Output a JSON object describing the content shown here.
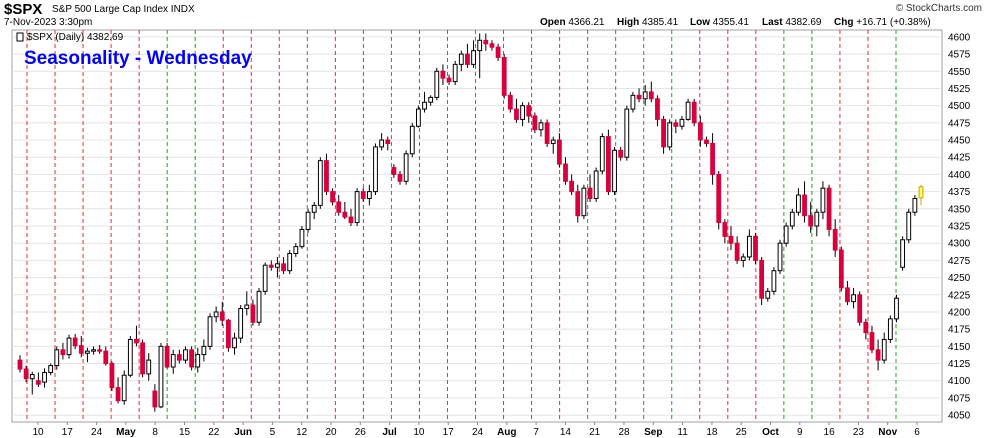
{
  "header": {
    "symbol": "$SPX",
    "description": "S&P 500 Large Cap Index  INDX",
    "date": "7-Nov-2023 3:30pm",
    "brand": "© StockCharts.com",
    "open_label": "Open",
    "open_value": "4366.21",
    "high_label": "High",
    "high_value": "4385.41",
    "low_label": "Low",
    "low_value": "4355.41",
    "last_label": "Last",
    "last_value": "4382.69",
    "chg_label": "Chg",
    "chg_value": "+16.71 (+0.38%)"
  },
  "chart_data": {
    "type": "candlestick",
    "title": "Seasonality - Wednesday",
    "legend_entry": "$SPX (Daily) 4382.69",
    "ylim": [
      4040,
      4610
    ],
    "yticks": [
      4050,
      4075,
      4100,
      4125,
      4150,
      4175,
      4200,
      4225,
      4250,
      4275,
      4300,
      4325,
      4350,
      4375,
      4400,
      4425,
      4450,
      4475,
      4500,
      4525,
      4550,
      4575,
      4600
    ],
    "x_tick_labels": [
      "10",
      "17",
      "24",
      "May",
      "8",
      "15",
      "22",
      "Jun",
      "5",
      "12",
      "20",
      "26",
      "Jul",
      "10",
      "17",
      "24",
      "Aug",
      "7",
      "14",
      "21",
      "28",
      "Sep",
      "11",
      "18",
      "25",
      "Oct",
      "9",
      "16",
      "23",
      "Nov",
      "6"
    ],
    "bold_x_labels": [
      "May",
      "Jun",
      "Jul",
      "Aug",
      "Sep",
      "Oct",
      "Nov"
    ],
    "vertical_lines": "red dashed = Wednesday (down), green dashed = Wednesday (up)",
    "wednesday_colors": [
      "red",
      "red",
      "red",
      "red",
      "red",
      "green",
      "green",
      "red",
      "red",
      "red",
      "green",
      "red",
      "red",
      "green",
      "red",
      "green",
      "green",
      "red",
      "red",
      "red",
      "green",
      "green",
      "green",
      "green",
      "red",
      "red",
      "red",
      "green",
      "green",
      "red",
      "red",
      "green"
    ],
    "candles": [
      [
        4130,
        4137,
        4112,
        4117
      ],
      [
        4117,
        4122,
        4098,
        4103
      ],
      [
        4103,
        4113,
        4080,
        4109
      ],
      [
        4100,
        4112,
        4091,
        4095
      ],
      [
        4098,
        4118,
        4090,
        4112
      ],
      [
        4112,
        4125,
        4108,
        4122
      ],
      [
        4122,
        4150,
        4116,
        4145
      ],
      [
        4145,
        4155,
        4131,
        4138
      ],
      [
        4138,
        4167,
        4132,
        4162
      ],
      [
        4162,
        4168,
        4146,
        4151
      ],
      [
        4151,
        4165,
        4134,
        4140
      ],
      [
        4140,
        4148,
        4127,
        4143
      ],
      [
        4143,
        4150,
        4138,
        4145
      ],
      [
        4145,
        4152,
        4139,
        4143
      ],
      [
        4143,
        4150,
        4122,
        4125
      ],
      [
        4125,
        4128,
        4085,
        4090
      ],
      [
        4090,
        4105,
        4067,
        4071
      ],
      [
        4071,
        4115,
        4065,
        4108
      ],
      [
        4108,
        4165,
        4105,
        4160
      ],
      [
        4160,
        4180,
        4150,
        4155
      ],
      [
        4155,
        4160,
        4105,
        4110
      ],
      [
        4110,
        4140,
        4100,
        4130
      ],
      [
        4085,
        4095,
        4055,
        4062
      ],
      [
        4062,
        4155,
        4060,
        4150
      ],
      [
        4150,
        4155,
        4118,
        4120
      ],
      [
        4120,
        4145,
        4110,
        4138
      ],
      [
        4138,
        4145,
        4125,
        4130
      ],
      [
        4130,
        4150,
        4125,
        4145
      ],
      [
        4145,
        4150,
        4115,
        4120
      ],
      [
        4120,
        4148,
        4112,
        4138
      ],
      [
        4138,
        4160,
        4128,
        4150
      ],
      [
        4150,
        4198,
        4145,
        4193
      ],
      [
        4193,
        4208,
        4185,
        4200
      ],
      [
        4200,
        4215,
        4180,
        4188
      ],
      [
        4188,
        4190,
        4142,
        4148
      ],
      [
        4148,
        4170,
        4138,
        4162
      ],
      [
        4162,
        4210,
        4155,
        4205
      ],
      [
        4205,
        4230,
        4195,
        4210
      ],
      [
        4210,
        4218,
        4180,
        4185
      ],
      [
        4185,
        4235,
        4180,
        4230
      ],
      [
        4230,
        4272,
        4225,
        4268
      ],
      [
        4268,
        4275,
        4260,
        4265
      ],
      [
        4265,
        4280,
        4250,
        4270
      ],
      [
        4270,
        4280,
        4255,
        4260
      ],
      [
        4260,
        4290,
        4255,
        4285
      ],
      [
        4285,
        4300,
        4280,
        4295
      ],
      [
        4295,
        4325,
        4292,
        4320
      ],
      [
        4320,
        4350,
        4315,
        4345
      ],
      [
        4345,
        4360,
        4335,
        4355
      ],
      [
        4355,
        4425,
        4350,
        4420
      ],
      [
        4420,
        4430,
        4370,
        4375
      ],
      [
        4375,
        4380,
        4355,
        4360
      ],
      [
        4360,
        4370,
        4340,
        4345
      ],
      [
        4345,
        4360,
        4335,
        4338
      ],
      [
        4338,
        4350,
        4325,
        4330
      ],
      [
        4330,
        4380,
        4325,
        4375
      ],
      [
        4375,
        4380,
        4360,
        4365
      ],
      [
        4365,
        4385,
        4355,
        4375
      ],
      [
        4375,
        4445,
        4370,
        4440
      ],
      [
        4440,
        4460,
        4435,
        4450
      ],
      [
        4450,
        4455,
        4435,
        4445
      ],
      [
        4410,
        4415,
        4395,
        4400
      ],
      [
        4400,
        4405,
        4385,
        4390
      ],
      [
        4390,
        4435,
        4385,
        4430
      ],
      [
        4430,
        4475,
        4425,
        4470
      ],
      [
        4470,
        4500,
        4468,
        4495
      ],
      [
        4495,
        4520,
        4490,
        4505
      ],
      [
        4505,
        4515,
        4500,
        4512
      ],
      [
        4512,
        4555,
        4508,
        4550
      ],
      [
        4550,
        4560,
        4530,
        4540
      ],
      [
        4540,
        4545,
        4530,
        4535
      ],
      [
        4535,
        4565,
        4530,
        4560
      ],
      [
        4560,
        4580,
        4550,
        4575
      ],
      [
        4575,
        4590,
        4555,
        4560
      ],
      [
        4560,
        4595,
        4555,
        4580
      ],
      [
        4580,
        4605,
        4540,
        4595
      ],
      [
        4595,
        4605,
        4580,
        4590
      ],
      [
        4590,
        4595,
        4580,
        4585
      ],
      [
        4585,
        4590,
        4565,
        4570
      ],
      [
        4570,
        4575,
        4510,
        4515
      ],
      [
        4515,
        4520,
        4490,
        4495
      ],
      [
        4495,
        4510,
        4475,
        4480
      ],
      [
        4480,
        4505,
        4470,
        4500
      ],
      [
        4500,
        4505,
        4475,
        4485
      ],
      [
        4485,
        4490,
        4460,
        4465
      ],
      [
        4465,
        4480,
        4455,
        4475
      ],
      [
        4475,
        4480,
        4440,
        4445
      ],
      [
        4445,
        4455,
        4430,
        4450
      ],
      [
        4450,
        4460,
        4410,
        4415
      ],
      [
        4415,
        4425,
        4385,
        4390
      ],
      [
        4390,
        4400,
        4370,
        4375
      ],
      [
        4375,
        4385,
        4330,
        4340
      ],
      [
        4340,
        4385,
        4335,
        4380
      ],
      [
        4380,
        4400,
        4360,
        4365
      ],
      [
        4365,
        4410,
        4360,
        4405
      ],
      [
        4405,
        4460,
        4400,
        4455
      ],
      [
        4455,
        4465,
        4370,
        4375
      ],
      [
        4375,
        4440,
        4370,
        4435
      ],
      [
        4435,
        4440,
        4420,
        4425
      ],
      [
        4425,
        4500,
        4420,
        4495
      ],
      [
        4495,
        4520,
        4490,
        4515
      ],
      [
        4515,
        4525,
        4505,
        4510
      ],
      [
        4510,
        4530,
        4500,
        4520
      ],
      [
        4520,
        4535,
        4505,
        4510
      ],
      [
        4510,
        4515,
        4470,
        4480
      ],
      [
        4480,
        4485,
        4430,
        4440
      ],
      [
        4440,
        4480,
        4435,
        4475
      ],
      [
        4475,
        4480,
        4460,
        4470
      ],
      [
        4470,
        4485,
        4465,
        4480
      ],
      [
        4480,
        4510,
        4478,
        4505
      ],
      [
        4505,
        4510,
        4470,
        4475
      ],
      [
        4475,
        4485,
        4440,
        4450
      ],
      [
        4450,
        4455,
        4440,
        4445
      ],
      [
        4445,
        4460,
        4385,
        4400
      ],
      [
        4400,
        4405,
        4320,
        4330
      ],
      [
        4330,
        4335,
        4300,
        4310
      ],
      [
        4310,
        4325,
        4290,
        4300
      ],
      [
        4300,
        4310,
        4270,
        4275
      ],
      [
        4275,
        4285,
        4265,
        4280
      ],
      [
        4280,
        4320,
        4275,
        4310
      ],
      [
        4310,
        4315,
        4270,
        4275
      ],
      [
        4275,
        4280,
        4210,
        4220
      ],
      [
        4220,
        4235,
        4215,
        4230
      ],
      [
        4230,
        4265,
        4225,
        4260
      ],
      [
        4260,
        4305,
        4255,
        4300
      ],
      [
        4300,
        4330,
        4295,
        4325
      ],
      [
        4325,
        4350,
        4320,
        4345
      ],
      [
        4345,
        4380,
        4340,
        4370
      ],
      [
        4370,
        4390,
        4330,
        4340
      ],
      [
        4340,
        4360,
        4315,
        4325
      ],
      [
        4325,
        4350,
        4310,
        4345
      ],
      [
        4345,
        4390,
        4335,
        4380
      ],
      [
        4380,
        4385,
        4310,
        4320
      ],
      [
        4320,
        4335,
        4280,
        4290
      ],
      [
        4290,
        4295,
        4230,
        4235
      ],
      [
        4235,
        4245,
        4210,
        4215
      ],
      [
        4215,
        4235,
        4205,
        4225
      ],
      [
        4225,
        4230,
        4180,
        4185
      ],
      [
        4185,
        4190,
        4160,
        4170
      ],
      [
        4170,
        4180,
        4140,
        4145
      ],
      [
        4145,
        4160,
        4115,
        4130
      ],
      [
        4130,
        4170,
        4125,
        4160
      ],
      [
        4160,
        4195,
        4155,
        4190
      ],
      [
        4190,
        4225,
        4185,
        4220
      ],
      [
        4265,
        4310,
        4260,
        4305
      ],
      [
        4305,
        4350,
        4300,
        4345
      ],
      [
        4345,
        4370,
        4340,
        4365
      ],
      [
        4366,
        4385,
        4355,
        4382
      ]
    ]
  }
}
